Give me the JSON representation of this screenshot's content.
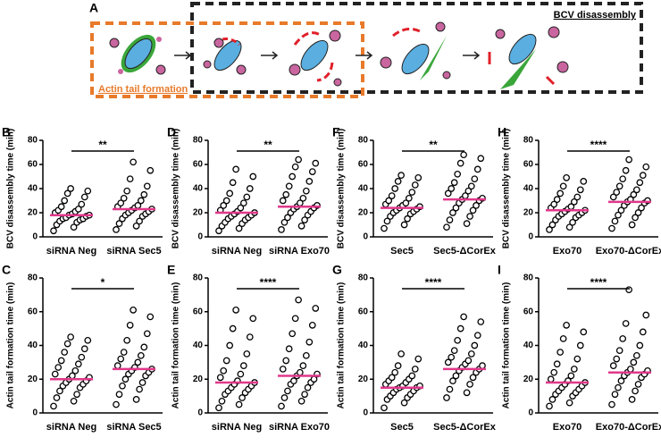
{
  "schematic": {
    "label": "A",
    "top_box": "BCV disassembly",
    "bottom_box": "Actin tail formation"
  },
  "chart_data": [
    {
      "type": "dotplot",
      "panel": "B",
      "y_label": "BCV disassembly time (min)",
      "categories": [
        "siRNA Neg",
        "siRNA Sec5"
      ],
      "ylim": [
        0,
        80
      ],
      "yticks": [
        0,
        20,
        40,
        60,
        80
      ],
      "significance": "**",
      "mean_color": "#e0388b",
      "means": [
        18,
        23
      ],
      "values": [
        [
          5,
          8,
          10,
          12,
          13,
          14,
          15,
          15,
          16,
          17,
          18,
          18,
          19,
          20,
          21,
          22,
          23,
          25,
          27,
          30,
          33,
          36,
          38,
          40
        ],
        [
          6,
          9,
          11,
          13,
          15,
          17,
          18,
          19,
          20,
          21,
          22,
          23,
          24,
          25,
          26,
          28,
          30,
          32,
          35,
          38,
          42,
          48,
          55,
          62
        ]
      ]
    },
    {
      "type": "dotplot",
      "panel": "D",
      "y_label": "BCV disassembly time (min)",
      "categories": [
        "siRNA Neg",
        "siRNA Exo70"
      ],
      "ylim": [
        0,
        80
      ],
      "yticks": [
        0,
        20,
        40,
        60,
        80
      ],
      "significance": "**",
      "mean_color": "#e0388b",
      "means": [
        20,
        25
      ],
      "values": [
        [
          5,
          7,
          9,
          11,
          12,
          14,
          15,
          16,
          17,
          18,
          19,
          20,
          21,
          22,
          24,
          26,
          28,
          30,
          33,
          36,
          40,
          45,
          50,
          56
        ],
        [
          6,
          9,
          12,
          14,
          16,
          18,
          20,
          21,
          23,
          24,
          25,
          26,
          28,
          30,
          32,
          35,
          38,
          42,
          46,
          50,
          54,
          58,
          61,
          64
        ]
      ]
    },
    {
      "type": "dotplot",
      "panel": "F",
      "y_label": "BCV disassembly time (min)",
      "categories": [
        "Sec5",
        "Sec5-ΔCorEx"
      ],
      "ylim": [
        0,
        80
      ],
      "yticks": [
        0,
        20,
        40,
        60,
        80
      ],
      "significance": "**",
      "mean_color": "#e0388b",
      "means": [
        24,
        31
      ],
      "values": [
        [
          7,
          10,
          13,
          15,
          17,
          19,
          20,
          21,
          22,
          23,
          24,
          25,
          26,
          27,
          28,
          30,
          32,
          34,
          37,
          40,
          43,
          46,
          49,
          51
        ],
        [
          8,
          11,
          14,
          17,
          20,
          22,
          24,
          26,
          28,
          30,
          31,
          32,
          34,
          36,
          38,
          40,
          42,
          45,
          48,
          52,
          56,
          61,
          65,
          68
        ]
      ]
    },
    {
      "type": "dotplot",
      "panel": "H",
      "y_label": "BCV disassembly time (min)",
      "categories": [
        "Exo70",
        "Exo70-ΔCorEx"
      ],
      "ylim": [
        0,
        80
      ],
      "yticks": [
        0,
        20,
        40,
        60,
        80
      ],
      "significance": "****",
      "mean_color": "#e0388b",
      "means": [
        22,
        29
      ],
      "values": [
        [
          6,
          8,
          10,
          12,
          14,
          16,
          17,
          18,
          19,
          20,
          21,
          22,
          23,
          24,
          25,
          27,
          29,
          31,
          33,
          36,
          39,
          42,
          46,
          49
        ],
        [
          7,
          10,
          13,
          16,
          18,
          20,
          22,
          24,
          26,
          28,
          29,
          30,
          31,
          33,
          35,
          37,
          39,
          42,
          45,
          48,
          51,
          55,
          58,
          64
        ]
      ]
    },
    {
      "type": "dotplot",
      "panel": "C",
      "y_label": "Actin tail formation time (min)",
      "categories": [
        "siRNA Neg",
        "siRNA Sec5"
      ],
      "ylim": [
        0,
        80
      ],
      "yticks": [
        0,
        20,
        40,
        60,
        80
      ],
      "significance": "*",
      "mean_color": "#e0388b",
      "means": [
        20,
        26
      ],
      "values": [
        [
          4,
          7,
          9,
          11,
          13,
          15,
          16,
          17,
          18,
          19,
          20,
          21,
          22,
          23,
          25,
          27,
          29,
          31,
          33,
          36,
          38,
          41,
          43,
          45
        ],
        [
          5,
          8,
          11,
          14,
          16,
          18,
          20,
          22,
          23,
          24,
          25,
          26,
          27,
          28,
          30,
          32,
          34,
          36,
          39,
          43,
          47,
          52,
          57,
          61
        ]
      ]
    },
    {
      "type": "dotplot",
      "panel": "E",
      "y_label": "Actin tail formation time (min)",
      "categories": [
        "siRNA Neg",
        "siRNA Exo70"
      ],
      "ylim": [
        0,
        80
      ],
      "yticks": [
        0,
        20,
        40,
        60,
        80
      ],
      "significance": "****",
      "mean_color": "#e0388b",
      "means": [
        18,
        22
      ],
      "values": [
        [
          3,
          5,
          7,
          9,
          11,
          12,
          13,
          14,
          15,
          16,
          17,
          18,
          19,
          21,
          23,
          25,
          28,
          31,
          35,
          40,
          45,
          50,
          56,
          61
        ],
        [
          4,
          7,
          9,
          11,
          13,
          15,
          17,
          18,
          19,
          20,
          22,
          23,
          24,
          26,
          28,
          31,
          34,
          38,
          42,
          47,
          52,
          56,
          62,
          67
        ]
      ]
    },
    {
      "type": "dotplot",
      "panel": "G",
      "y_label": "Actin tail formation time (min)",
      "categories": [
        "Sec5",
        "Sec5-ΔCorEx"
      ],
      "ylim": [
        0,
        80
      ],
      "yticks": [
        0,
        20,
        40,
        60,
        80
      ],
      "significance": "****",
      "mean_color": "#e0388b",
      "means": [
        15,
        26
      ],
      "values": [
        [
          3,
          6,
          8,
          9,
          10,
          11,
          12,
          13,
          14,
          15,
          15,
          16,
          16,
          17,
          18,
          19,
          20,
          21,
          22,
          24,
          26,
          28,
          32,
          35
        ],
        [
          9,
          12,
          14,
          17,
          19,
          21,
          22,
          24,
          25,
          26,
          27,
          28,
          29,
          30,
          31,
          33,
          35,
          37,
          40,
          43,
          46,
          50,
          54,
          57
        ]
      ]
    },
    {
      "type": "dotplot",
      "panel": "I",
      "y_label": "Actin tail formation time (min)",
      "categories": [
        "Exo70",
        "Exo70-ΔCorEx"
      ],
      "ylim": [
        0,
        80
      ],
      "yticks": [
        0,
        20,
        40,
        60,
        80
      ],
      "significance": "****",
      "mean_color": "#e0388b",
      "means": [
        18,
        24
      ],
      "values": [
        [
          4,
          6,
          8,
          10,
          11,
          12,
          13,
          14,
          15,
          16,
          17,
          18,
          19,
          20,
          22,
          24,
          26,
          29,
          32,
          36,
          40,
          44,
          48,
          52
        ],
        [
          5,
          8,
          11,
          13,
          15,
          17,
          19,
          21,
          22,
          23,
          24,
          25,
          26,
          28,
          30,
          32,
          34,
          37,
          40,
          44,
          48,
          53,
          58,
          73
        ]
      ]
    }
  ]
}
